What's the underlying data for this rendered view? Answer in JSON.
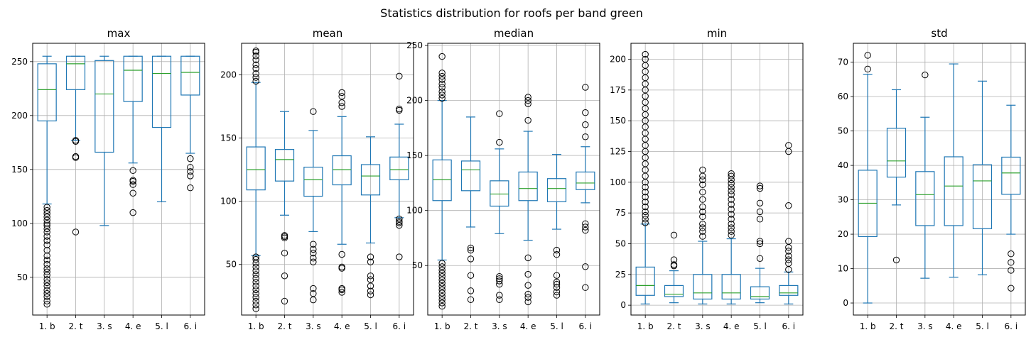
{
  "suptitle": "Statistics distribution for roofs per band green",
  "colors": {
    "box": "#1f77b4",
    "median": "#2ca02c",
    "grid": "#b0b0b0",
    "flier": "#000000"
  },
  "chart_data": [
    {
      "type": "box",
      "title": "max",
      "categories": [
        "1. b",
        "2. t",
        "3. s",
        "4. e",
        "5. l",
        "6. i"
      ],
      "ylim": [
        15,
        267
      ],
      "yticks": [
        50,
        100,
        150,
        200,
        250
      ],
      "grid": true,
      "boxes": [
        {
          "whislo": 118,
          "q1": 195,
          "med": 224,
          "q3": 248,
          "whishi": 255,
          "fliers": [
            25,
            28,
            32,
            35,
            38,
            42,
            45,
            48,
            52,
            55,
            58,
            62,
            66,
            70,
            75,
            80,
            84,
            88,
            92,
            95,
            98,
            100,
            103,
            106,
            109,
            112,
            115
          ]
        },
        {
          "whislo": 177,
          "q1": 224,
          "med": 248,
          "q3": 255,
          "whishi": 255,
          "fliers": [
            92,
            161,
            162,
            176,
            177
          ]
        },
        {
          "whislo": 98,
          "q1": 166,
          "med": 220,
          "q3": 251,
          "whishi": 255,
          "fliers": []
        },
        {
          "whislo": 156,
          "q1": 213,
          "med": 242,
          "q3": 255,
          "whishi": 255,
          "fliers": [
            110,
            128,
            136,
            139,
            140,
            149
          ]
        },
        {
          "whislo": 120,
          "q1": 189,
          "med": 239,
          "q3": 255,
          "whishi": 255,
          "fliers": []
        },
        {
          "whislo": 165,
          "q1": 219,
          "med": 240,
          "q3": 255,
          "whishi": 255,
          "fliers": [
            133,
            144,
            148,
            152,
            160
          ]
        }
      ]
    },
    {
      "type": "box",
      "title": "mean",
      "categories": [
        "1. b",
        "2. t",
        "3. s",
        "4. e",
        "5. l",
        "6. i"
      ],
      "ylim": [
        10,
        225
      ],
      "yticks": [
        50,
        100,
        150,
        200
      ],
      "grid": true,
      "boxes": [
        {
          "whislo": 57,
          "q1": 109,
          "med": 125,
          "q3": 143,
          "whishi": 194,
          "fliers": [
            15,
            18,
            21,
            24,
            27,
            30,
            33,
            36,
            39,
            42,
            45,
            48,
            51,
            54,
            56,
            195,
            198,
            201,
            205,
            208,
            212,
            215,
            218,
            219
          ]
        },
        {
          "whislo": 89,
          "q1": 116,
          "med": 133,
          "q3": 141,
          "whishi": 171,
          "fliers": [
            21,
            41,
            59,
            71,
            72,
            73
          ]
        },
        {
          "whislo": 76,
          "q1": 104,
          "med": 117,
          "q3": 127,
          "whishi": 156,
          "fliers": [
            22,
            27,
            31,
            52,
            55,
            59,
            62,
            66,
            171
          ]
        },
        {
          "whislo": 66,
          "q1": 113,
          "med": 125,
          "q3": 136,
          "whishi": 167,
          "fliers": [
            28,
            30,
            31,
            47,
            48,
            58,
            175,
            178,
            183,
            186
          ]
        },
        {
          "whislo": 67,
          "q1": 105,
          "med": 120,
          "q3": 129,
          "whishi": 151,
          "fliers": [
            26,
            29,
            33,
            38,
            41,
            52,
            56
          ]
        },
        {
          "whislo": 87,
          "q1": 117,
          "med": 125,
          "q3": 135,
          "whishi": 161,
          "fliers": [
            56,
            81,
            83,
            84,
            86,
            172,
            173,
            199
          ]
        }
      ]
    },
    {
      "type": "box",
      "title": "median",
      "categories": [
        "1. b",
        "2. t",
        "3. s",
        "4. e",
        "5. l",
        "6. i"
      ],
      "ylim": [
        5,
        252
      ],
      "yticks": [
        50,
        100,
        150,
        200,
        250
      ],
      "grid": true,
      "boxes": [
        {
          "whislo": 55,
          "q1": 109,
          "med": 128,
          "q3": 146,
          "whishi": 200,
          "fliers": [
            13,
            16,
            19,
            22,
            25,
            28,
            31,
            34,
            37,
            40,
            43,
            46,
            49,
            52,
            202,
            205,
            208,
            212,
            215,
            219,
            222,
            225,
            240
          ]
        },
        {
          "whislo": 85,
          "q1": 118,
          "med": 137,
          "q3": 145,
          "whishi": 185,
          "fliers": [
            19,
            27,
            41,
            56,
            64,
            66
          ]
        },
        {
          "whislo": 79,
          "q1": 104,
          "med": 115,
          "q3": 127,
          "whishi": 156,
          "fliers": [
            19,
            23,
            33,
            36,
            38,
            40,
            162,
            188
          ]
        },
        {
          "whislo": 73,
          "q1": 109,
          "med": 120,
          "q3": 135,
          "whishi": 172,
          "fliers": [
            17,
            21,
            24,
            32,
            42,
            57,
            182,
            197,
            200,
            203
          ]
        },
        {
          "whislo": 83,
          "q1": 108,
          "med": 120,
          "q3": 129,
          "whishi": 151,
          "fliers": [
            23,
            26,
            30,
            33,
            35,
            41,
            60,
            64
          ]
        },
        {
          "whislo": 107,
          "q1": 119,
          "med": 125,
          "q3": 135,
          "whishi": 158,
          "fliers": [
            30,
            49,
            82,
            85,
            88,
            167,
            178,
            189,
            212
          ]
        }
      ]
    },
    {
      "type": "box",
      "title": "min",
      "categories": [
        "1. b",
        "2. t",
        "3. s",
        "4. e",
        "5. l",
        "6. i"
      ],
      "ylim": [
        -8,
        213
      ],
      "yticks": [
        0,
        25,
        50,
        75,
        100,
        125,
        150,
        175,
        200
      ],
      "grid": true,
      "boxes": [
        {
          "whislo": 1,
          "q1": 8,
          "med": 16,
          "q3": 31,
          "whishi": 66,
          "fliers": [
            67,
            70,
            73,
            76,
            80,
            84,
            88,
            92,
            96,
            100,
            105,
            110,
            115,
            120,
            125,
            130,
            135,
            140,
            145,
            150,
            155,
            160,
            165,
            170,
            175,
            180,
            185,
            190,
            195,
            200,
            204
          ]
        },
        {
          "whislo": 2,
          "q1": 7,
          "med": 9,
          "q3": 16,
          "whishi": 28,
          "fliers": [
            32,
            33,
            37,
            57
          ]
        },
        {
          "whislo": 1,
          "q1": 5,
          "med": 10,
          "q3": 25,
          "whishi": 52,
          "fliers": [
            56,
            60,
            63,
            66,
            72,
            76,
            80,
            86,
            92,
            98,
            102,
            105,
            110
          ]
        },
        {
          "whislo": 1,
          "q1": 5,
          "med": 10,
          "q3": 25,
          "whishi": 54,
          "fliers": [
            57,
            60,
            63,
            66,
            70,
            74,
            78,
            82,
            86,
            90,
            93,
            96,
            99,
            102,
            105,
            107
          ]
        },
        {
          "whislo": 2,
          "q1": 5,
          "med": 7,
          "q3": 15,
          "whishi": 30,
          "fliers": [
            38,
            50,
            52,
            70,
            76,
            83,
            95,
            97
          ]
        },
        {
          "whislo": 1,
          "q1": 8,
          "med": 10,
          "q3": 16,
          "whishi": 27,
          "fliers": [
            29,
            34,
            37,
            40,
            44,
            47,
            52,
            81,
            125,
            130
          ]
        }
      ]
    },
    {
      "type": "box",
      "title": "std",
      "categories": [
        "1. b",
        "2. t",
        "3. s",
        "4. e",
        "5. l",
        "6. i"
      ],
      "ylim": [
        -3.5,
        75.5
      ],
      "yticks": [
        0,
        10,
        20,
        30,
        40,
        50,
        60,
        70
      ],
      "grid": true,
      "boxes": [
        {
          "whislo": 0,
          "q1": 19.3,
          "med": 29,
          "q3": 38.6,
          "whishi": 66.5,
          "fliers": [
            68,
            72
          ]
        },
        {
          "whislo": 28.5,
          "q1": 36.6,
          "med": 41.3,
          "q3": 50.8,
          "whishi": 62,
          "fliers": [
            12.5
          ]
        },
        {
          "whislo": 7.2,
          "q1": 22.5,
          "med": 31.5,
          "q3": 38.2,
          "whishi": 54,
          "fliers": [
            66.3
          ]
        },
        {
          "whislo": 7.5,
          "q1": 22.5,
          "med": 34,
          "q3": 42.5,
          "whishi": 69.5,
          "fliers": []
        },
        {
          "whislo": 8.2,
          "q1": 21.6,
          "med": 35.5,
          "q3": 40.2,
          "whishi": 64.5,
          "fliers": []
        },
        {
          "whislo": 20,
          "q1": 31.6,
          "med": 37.8,
          "q3": 42.4,
          "whishi": 57.5,
          "fliers": [
            4.3,
            9.5,
            11.8,
            14.3
          ]
        }
      ]
    }
  ]
}
